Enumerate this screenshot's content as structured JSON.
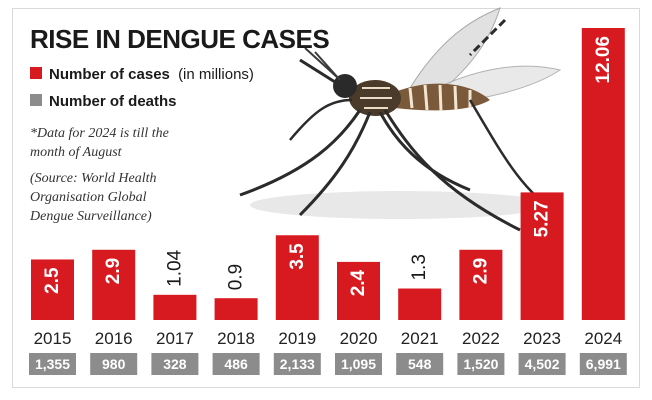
{
  "header": {
    "title": "RISE IN DENGUE CASES"
  },
  "legend": {
    "cases_bold": "Number of cases",
    "cases_unit": "(in millions)",
    "deaths": "Number of deaths",
    "cases_color": "#d71920",
    "deaths_color": "#8c8c8c"
  },
  "notes": {
    "note1_line1": "*Data for 2024 is till the",
    "note1_line2": "month of August",
    "source_line1": "(Source: World Health",
    "source_line2": "Organisation Global",
    "source_line3": "Dengue Surveillance)"
  },
  "chart_data": {
    "type": "bar",
    "categories": [
      "2015",
      "2016",
      "2017",
      "2018",
      "2019",
      "2020",
      "2021",
      "2022",
      "2023",
      "2024"
    ],
    "series": [
      {
        "name": "Number of cases (in millions)",
        "values": [
          2.5,
          2.9,
          1.04,
          0.9,
          3.5,
          2.4,
          1.3,
          2.9,
          5.27,
          12.06
        ],
        "labels": [
          "2.5",
          "2.9",
          "1.04",
          "0.9",
          "3.5",
          "2.4",
          "1.3",
          "2.9",
          "5.27",
          "12.06"
        ],
        "color": "#d71920"
      },
      {
        "name": "Number of deaths",
        "values": [
          1355,
          980,
          328,
          486,
          2133,
          1095,
          548,
          1520,
          4502,
          6991
        ],
        "labels": [
          "1,355",
          "980",
          "328",
          "486",
          "2,133",
          "1,095",
          "548",
          "1,520",
          "4,502",
          "6,991"
        ],
        "color": "#8c8c8c"
      }
    ],
    "ylim": [
      0,
      12.06
    ],
    "grid": false
  }
}
